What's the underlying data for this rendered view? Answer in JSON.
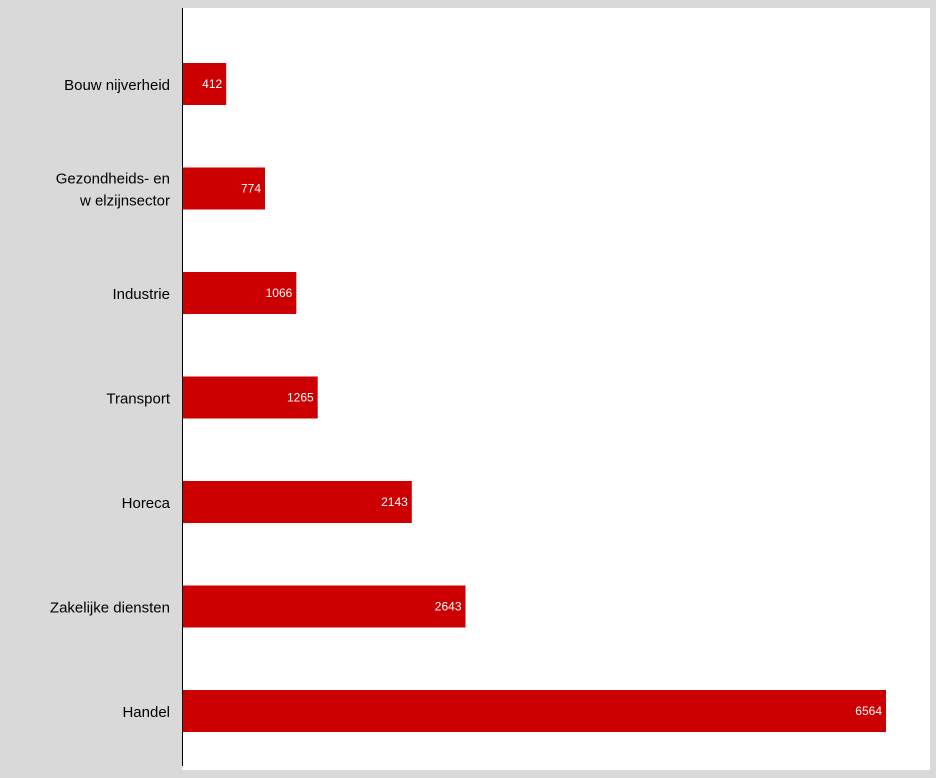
{
  "chart_data": {
    "type": "bar",
    "orientation": "horizontal",
    "title": "",
    "xlabel": "",
    "ylabel": "",
    "categories": [
      [
        "Bouw nijverheid"
      ],
      [
        "Gezondheids- en",
        "w elzijnsector"
      ],
      [
        "Industrie"
      ],
      [
        "Transport"
      ],
      [
        "Horeca"
      ],
      [
        "Zakelijke diensten"
      ],
      [
        "Handel"
      ]
    ],
    "values": [
      412,
      774,
      1066,
      1265,
      2143,
      2643,
      6564
    ],
    "value_labels": [
      "412",
      "774",
      "1066",
      "1265",
      "2143",
      "2643",
      "6564"
    ],
    "xlim": [
      0,
      6700
    ],
    "grid": false,
    "legend": "none",
    "colors": {
      "bar": "#cc0000",
      "bar_label": "#ffffff",
      "panel_background": "#d9d9d9",
      "plot_background": "#ffffff",
      "axis": "#000000",
      "category_text": "#000000"
    }
  }
}
